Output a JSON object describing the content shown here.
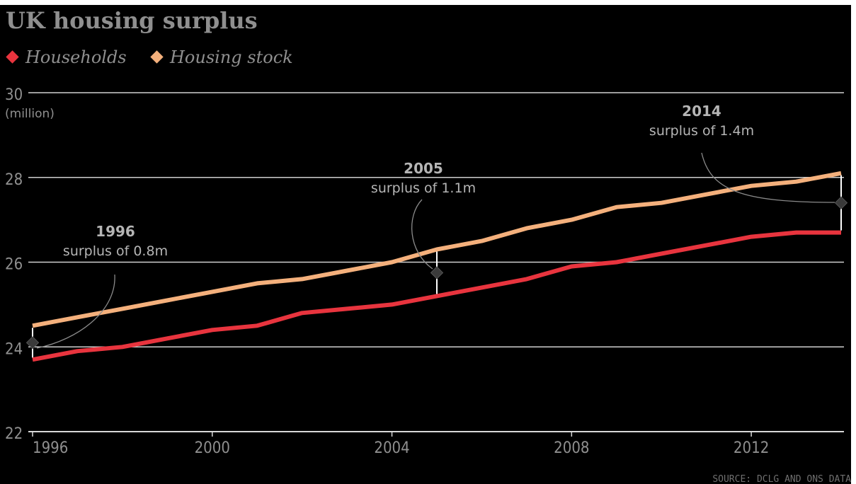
{
  "chart_data": {
    "type": "line",
    "title": "UK housing surplus",
    "ylabel": "(million)",
    "ylim": [
      22,
      30
    ],
    "yticks": [
      22,
      24,
      26,
      28,
      30
    ],
    "xlim": [
      1996,
      2014
    ],
    "xticks": [
      1996,
      2000,
      2004,
      2008,
      2012
    ],
    "x": [
      1996,
      1997,
      1998,
      1999,
      2000,
      2001,
      2002,
      2003,
      2004,
      2005,
      2006,
      2007,
      2008,
      2009,
      2010,
      2011,
      2012,
      2013,
      2014
    ],
    "series": [
      {
        "name": "Households",
        "color": "#e8343e",
        "values": [
          23.7,
          23.9,
          24.0,
          24.2,
          24.4,
          24.5,
          24.8,
          24.9,
          25.0,
          25.2,
          25.4,
          25.6,
          25.9,
          26.0,
          26.2,
          26.4,
          26.6,
          26.7,
          26.7
        ]
      },
      {
        "name": "Housing stock",
        "color": "#f4b07c",
        "values": [
          24.5,
          24.7,
          24.9,
          25.1,
          25.3,
          25.5,
          25.6,
          25.8,
          26.0,
          26.3,
          26.5,
          26.8,
          27.0,
          27.3,
          27.4,
          27.6,
          27.8,
          27.9,
          28.1
        ]
      }
    ],
    "annotations": [
      {
        "year": "1996",
        "text": "surplus of 0.8m",
        "x": 1996,
        "marker_y": 24.1
      },
      {
        "year": "2005",
        "text": "surplus of 1.1m",
        "x": 2005,
        "marker_y": 25.75
      },
      {
        "year": "2014",
        "text": "surplus of 1.4m",
        "x": 2014,
        "marker_y": 27.4
      }
    ],
    "source": "SOURCE: DCLG AND ONS DATA",
    "grid": true,
    "legend_position": "top-left"
  }
}
